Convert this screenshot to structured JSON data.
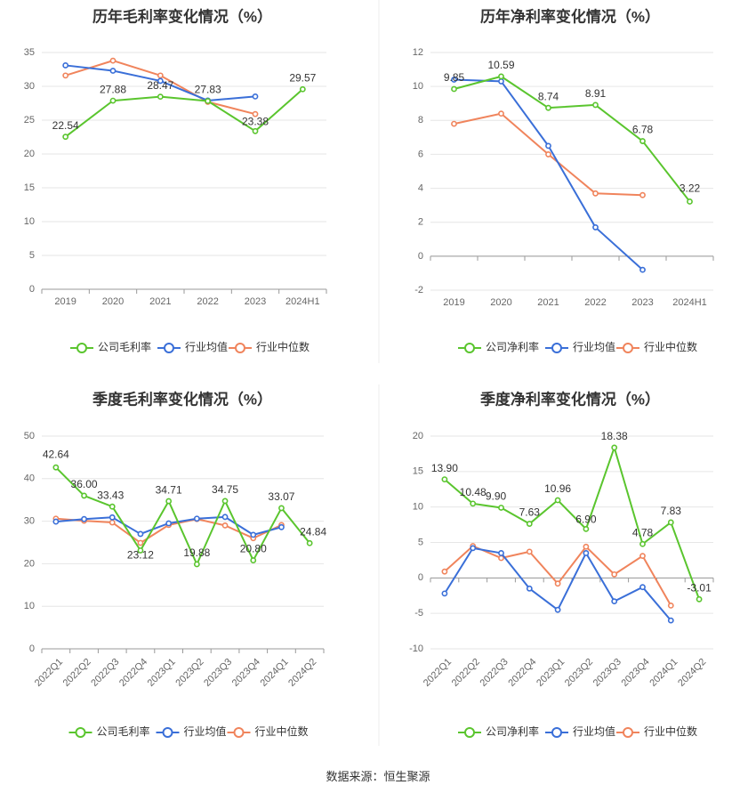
{
  "footer": {
    "source": "数据来源：恒生聚源"
  },
  "colors": {
    "company": "#5ac52e",
    "industry_avg": "#3a6fd8",
    "industry_median": "#f0845c",
    "grid": "#e6e6e6",
    "axis_text": "#666666",
    "title_text": "#333333"
  },
  "chart_data": [
    {
      "type": "line",
      "title": "历年毛利率变化情况（%）",
      "categories": [
        "2019",
        "2020",
        "2021",
        "2022",
        "2023",
        "2024H1"
      ],
      "ylim": [
        0,
        35
      ],
      "yticks": [
        0,
        5,
        10,
        15,
        20,
        25,
        30,
        35
      ],
      "rotate_xlabels": false,
      "legend_position": "bottom",
      "series": [
        {
          "name": "公司毛利率",
          "color_key": "company",
          "values": [
            22.54,
            27.88,
            28.47,
            27.83,
            23.38,
            29.57
          ],
          "labels": [
            "22.54",
            "27.88",
            "28.47",
            "27.83",
            "23.38",
            "29.57"
          ]
        },
        {
          "name": "行业均值",
          "color_key": "industry_avg",
          "values": [
            33.1,
            32.3,
            30.8,
            27.9,
            28.5,
            null
          ]
        },
        {
          "name": "行业中位数",
          "color_key": "industry_median",
          "values": [
            31.6,
            33.8,
            31.6,
            27.7,
            25.9,
            null
          ]
        }
      ]
    },
    {
      "type": "line",
      "title": "历年净利率变化情况（%）",
      "categories": [
        "2019",
        "2020",
        "2021",
        "2022",
        "2023",
        "2024H1"
      ],
      "ylim": [
        -2,
        12
      ],
      "yticks": [
        -2,
        0,
        2,
        4,
        6,
        8,
        10,
        12
      ],
      "rotate_xlabels": false,
      "legend_position": "bottom",
      "series": [
        {
          "name": "公司净利率",
          "color_key": "company",
          "values": [
            9.85,
            10.59,
            8.74,
            8.91,
            6.78,
            3.22
          ],
          "labels": [
            "9.85",
            "10.59",
            "8.74",
            "8.91",
            "6.78",
            "3.22"
          ]
        },
        {
          "name": "行业均值",
          "color_key": "industry_avg",
          "values": [
            10.4,
            10.3,
            6.5,
            1.7,
            -0.8,
            null
          ]
        },
        {
          "name": "行业中位数",
          "color_key": "industry_median",
          "values": [
            7.8,
            8.4,
            6.0,
            3.7,
            3.6,
            null
          ]
        }
      ]
    },
    {
      "type": "line",
      "title": "季度毛利率变化情况（%）",
      "categories": [
        "2022Q1",
        "2022Q2",
        "2022Q3",
        "2022Q4",
        "2023Q1",
        "2023Q2",
        "2023Q3",
        "2023Q4",
        "2024Q1",
        "2024Q2"
      ],
      "ylim": [
        0,
        50
      ],
      "yticks": [
        0,
        10,
        20,
        30,
        40,
        50
      ],
      "rotate_xlabels": true,
      "legend_position": "bottom",
      "series": [
        {
          "name": "公司毛利率",
          "color_key": "company",
          "values": [
            42.64,
            36.0,
            33.43,
            23.12,
            34.71,
            19.88,
            34.75,
            20.8,
            33.07,
            24.84
          ],
          "labels": [
            "42.64",
            "36.00",
            "33.43",
            "23.12",
            "34.71",
            "19.88",
            "34.75",
            "20.80",
            "33.07",
            "24.84"
          ]
        },
        {
          "name": "行业均值",
          "color_key": "industry_avg",
          "values": [
            29.9,
            30.5,
            30.9,
            27.0,
            29.5,
            30.6,
            31.0,
            26.8,
            28.6,
            null
          ]
        },
        {
          "name": "行业中位数",
          "color_key": "industry_median",
          "values": [
            30.6,
            30.1,
            29.7,
            24.9,
            29.1,
            30.5,
            29.0,
            26.0,
            29.1,
            null
          ]
        }
      ]
    },
    {
      "type": "line",
      "title": "季度净利率变化情况（%）",
      "categories": [
        "2022Q1",
        "2022Q2",
        "2022Q3",
        "2022Q4",
        "2023Q1",
        "2023Q2",
        "2023Q3",
        "2023Q4",
        "2024Q1",
        "2024Q2"
      ],
      "ylim": [
        -10,
        20
      ],
      "yticks": [
        -10,
        -5,
        0,
        5,
        10,
        15,
        20
      ],
      "rotate_xlabels": true,
      "legend_position": "bottom",
      "series": [
        {
          "name": "公司净利率",
          "color_key": "company",
          "values": [
            13.9,
            10.48,
            9.9,
            7.63,
            10.96,
            6.9,
            18.38,
            4.78,
            7.83,
            -3.01
          ],
          "labels": [
            "13.90",
            "10.48",
            "9.90",
            "7.63",
            "10.96",
            "6.90",
            "18.38",
            "4.78",
            "7.83",
            "-3.01"
          ]
        },
        {
          "name": "行业均值",
          "color_key": "industry_avg",
          "values": [
            -2.2,
            4.2,
            3.5,
            -1.5,
            -4.5,
            3.5,
            -3.3,
            -1.3,
            -6.0,
            null
          ]
        },
        {
          "name": "行业中位数",
          "color_key": "industry_median",
          "values": [
            0.9,
            4.5,
            2.8,
            3.7,
            -0.8,
            4.4,
            0.5,
            3.1,
            -3.9,
            null
          ]
        }
      ]
    }
  ]
}
